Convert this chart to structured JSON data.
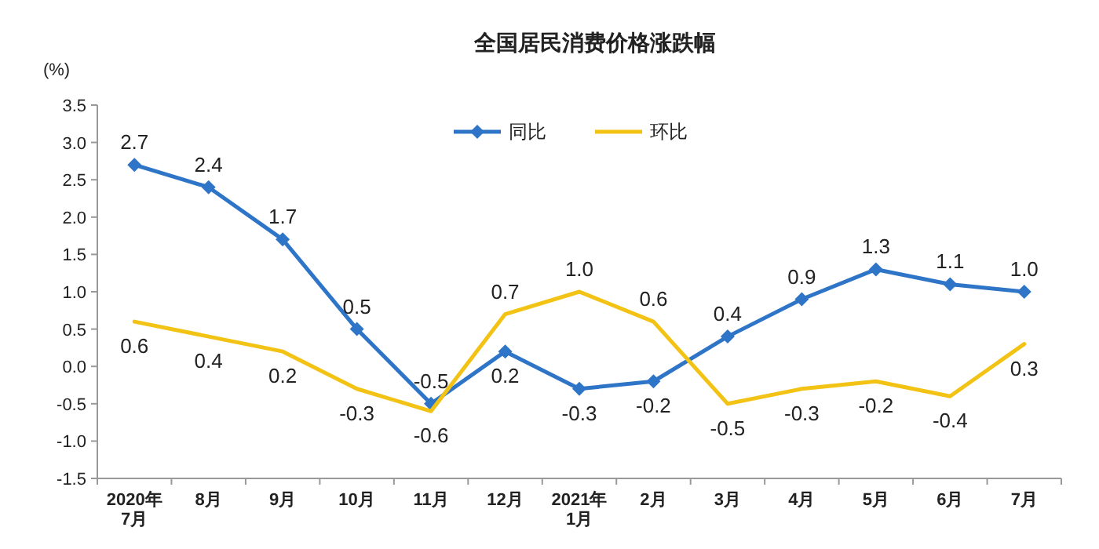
{
  "chart_data": {
    "type": "line",
    "title": "全国居民消费价格涨跌幅",
    "ylabel": "(%)",
    "categories": [
      "2020年\n7月",
      "8月",
      "9月",
      "10月",
      "11月",
      "12月",
      "2021年\n1月",
      "2月",
      "3月",
      "4月",
      "5月",
      "6月",
      "7月"
    ],
    "series": [
      {
        "name": "同比",
        "color": "#2e75c8",
        "marker": "diamond",
        "values": [
          2.7,
          2.4,
          1.7,
          0.5,
          -0.5,
          0.2,
          -0.3,
          -0.2,
          0.4,
          0.9,
          1.3,
          1.1,
          1.0
        ],
        "value_labels": [
          "2.7",
          "2.4",
          "1.7",
          "0.5",
          "-0.5",
          "0.2",
          "-0.3",
          "-0.2",
          "0.4",
          "0.9",
          "1.3",
          "1.1",
          "1.0"
        ]
      },
      {
        "name": "环比",
        "color": "#f2c314",
        "marker": "none",
        "values": [
          0.6,
          0.4,
          0.2,
          -0.3,
          -0.6,
          0.7,
          1.0,
          0.6,
          -0.5,
          -0.3,
          -0.2,
          -0.4,
          0.3
        ],
        "value_labels": [
          "0.6",
          "0.4",
          "0.2",
          "-0.3",
          "-0.6",
          "0.7",
          "1.0",
          "0.6",
          "-0.5",
          "-0.3",
          "-0.2",
          "-0.4",
          "0.3"
        ]
      }
    ],
    "ylim": [
      -1.5,
      3.5
    ],
    "yticks": [
      {
        "value": 3.5,
        "label": "3.5"
      },
      {
        "value": 3.0,
        "label": "3.0"
      },
      {
        "value": 2.5,
        "label": "2.5"
      },
      {
        "value": 2.0,
        "label": "2.0"
      },
      {
        "value": 1.5,
        "label": "1.5"
      },
      {
        "value": 1.0,
        "label": "1.0"
      },
      {
        "value": 0.5,
        "label": "0.5"
      },
      {
        "value": 0.0,
        "label": "0.0"
      },
      {
        "value": -0.5,
        "label": "-0.5"
      },
      {
        "value": -1.0,
        "label": "-1.0"
      },
      {
        "value": -1.5,
        "label": "-1.5"
      }
    ],
    "legend": "top",
    "grid": false,
    "line_style": "solid"
  }
}
